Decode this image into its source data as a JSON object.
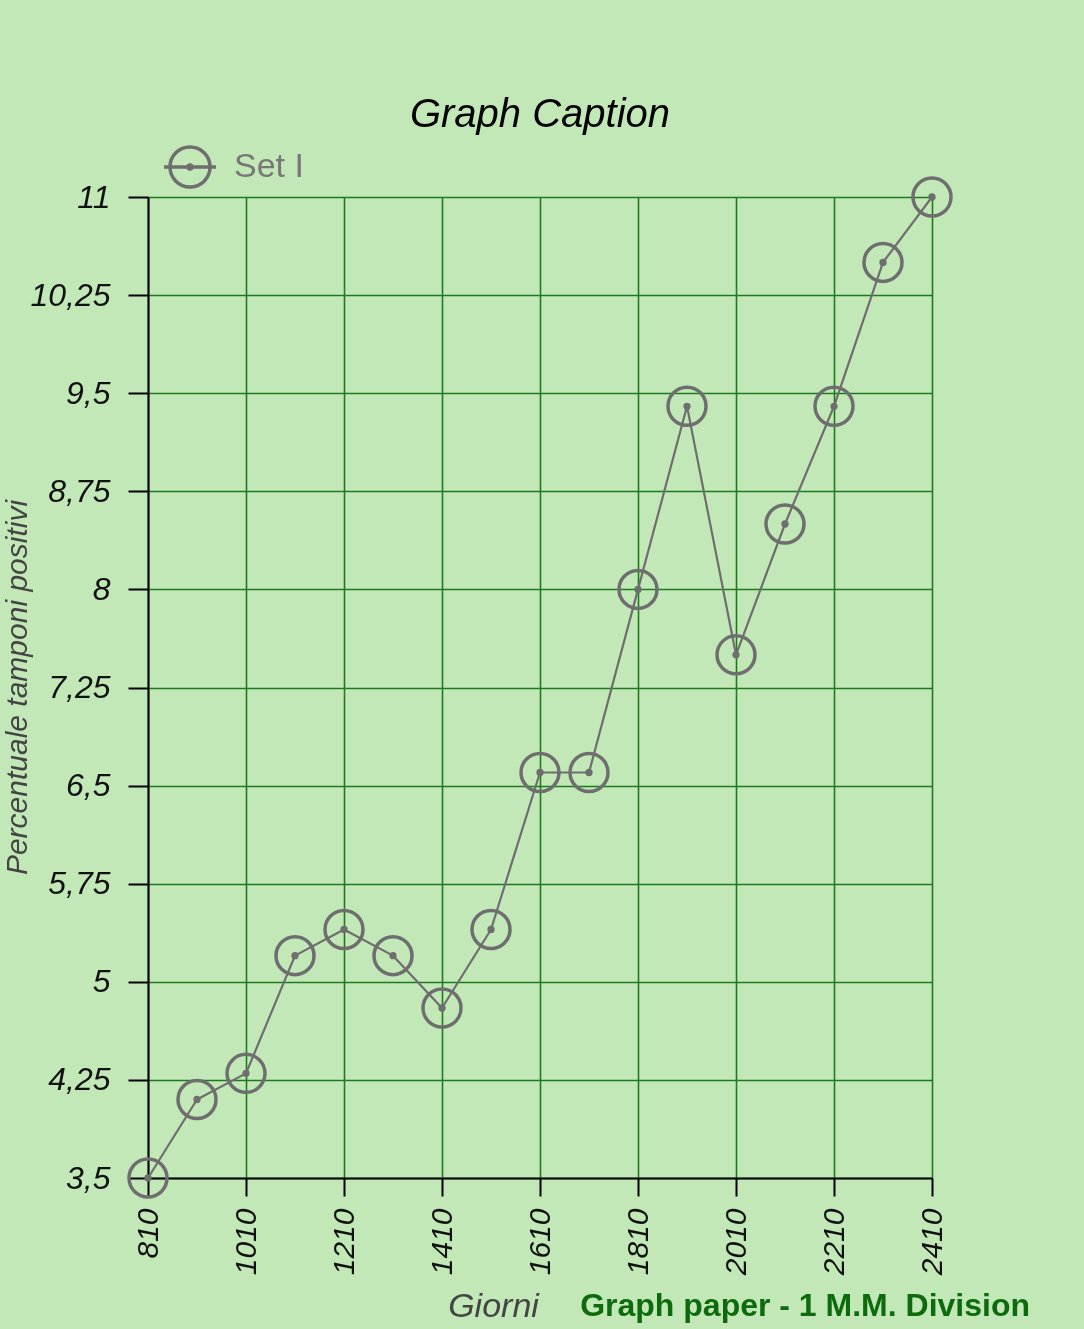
{
  "chart_data": {
    "type": "line",
    "title": "Graph Caption",
    "xlabel": "Giorni",
    "ylabel": "Percentuale tamponi positivi",
    "x": [
      810,
      910,
      1010,
      1110,
      1210,
      1310,
      1410,
      1510,
      1610,
      1710,
      1810,
      1910,
      2010,
      2110,
      2210,
      2310,
      2410
    ],
    "series": [
      {
        "name": "Set I",
        "color": "#6e6e6e",
        "values": [
          3.5,
          4.1,
          4.3,
          5.2,
          5.4,
          5.2,
          4.8,
          5.4,
          6.6,
          6.6,
          8.0,
          9.4,
          7.5,
          8.5,
          9.4,
          10.5,
          11.0
        ]
      }
    ],
    "xlim": [
      810,
      2410
    ],
    "ylim": [
      3.5,
      11
    ],
    "xticks": [
      810,
      1010,
      1210,
      1410,
      1610,
      1810,
      2010,
      2210,
      2410
    ],
    "yticks": [
      {
        "value": 3.5,
        "label": "3,5"
      },
      {
        "value": 4.25,
        "label": "4,25"
      },
      5,
      {
        "value": 5.75,
        "label": "5,75"
      },
      {
        "value": 6.5,
        "label": "6,5"
      },
      {
        "value": 7.25,
        "label": "7,25"
      },
      8,
      {
        "value": 8.75,
        "label": "8,75"
      },
      {
        "value": 9.5,
        "label": "9,5"
      },
      {
        "value": 10.25,
        "label": "10,25"
      },
      11
    ],
    "grid": true,
    "legend": "top left",
    "marker": "circle",
    "line_style": "solid",
    "annotations": [
      "Graph paper - 1 M.M. Division"
    ]
  }
}
